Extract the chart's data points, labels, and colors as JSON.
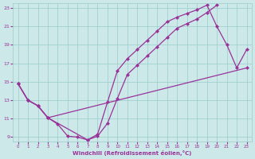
{
  "xlabel": "Windchill (Refroidissement éolien,°C)",
  "background_color": "#cce8e8",
  "grid_color": "#99cccc",
  "line_color": "#993399",
  "xlim": [
    -0.5,
    23.5
  ],
  "ylim": [
    8.5,
    23.5
  ],
  "xticks": [
    0,
    1,
    2,
    3,
    4,
    5,
    6,
    7,
    8,
    9,
    10,
    11,
    12,
    13,
    14,
    15,
    16,
    17,
    18,
    19,
    20,
    21,
    22,
    23
  ],
  "yticks": [
    9,
    11,
    13,
    15,
    17,
    19,
    21,
    23
  ],
  "line1_x": [
    0,
    1,
    2,
    3,
    4,
    5,
    6,
    7,
    8,
    9,
    10,
    11,
    12,
    13,
    14,
    15,
    16,
    17,
    18,
    19,
    20
  ],
  "line1_y": [
    14.8,
    13.0,
    12.4,
    11.1,
    10.4,
    9.1,
    9.0,
    8.7,
    9.1,
    10.5,
    13.2,
    15.8,
    16.8,
    17.8,
    18.8,
    19.8,
    20.8,
    21.3,
    21.8,
    22.5,
    23.3
  ],
  "line2_x": [
    0,
    1,
    2,
    3,
    7,
    8,
    9,
    10,
    11,
    12,
    13,
    14,
    15,
    16,
    17,
    18,
    19,
    20,
    21,
    22,
    23
  ],
  "line2_y": [
    14.8,
    13.0,
    12.4,
    11.1,
    8.7,
    9.3,
    12.8,
    16.2,
    17.5,
    18.5,
    19.5,
    20.5,
    21.5,
    22.0,
    22.4,
    22.8,
    23.3,
    21.0,
    19.0,
    16.5,
    18.5
  ],
  "line3_x": [
    0,
    1,
    2,
    3,
    23
  ],
  "line3_y": [
    14.8,
    13.0,
    12.4,
    11.1,
    16.5
  ]
}
